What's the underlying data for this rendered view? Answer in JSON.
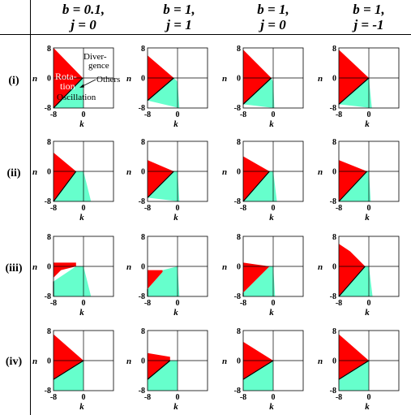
{
  "column_headers": [
    {
      "line1": "b = 0.1,",
      "line2": "j = 0"
    },
    {
      "line1": "b = 1,",
      "line2": "j = 1"
    },
    {
      "line1": "b = 1,",
      "line2": "j = 0"
    },
    {
      "line1": "b = 1,",
      "line2": "j = -1"
    }
  ],
  "row_headers": [
    "(i)",
    "(ii)",
    "(iii)",
    "(iv)"
  ],
  "axes": {
    "x_label": "k",
    "y_label": "n",
    "x_ticks": [
      "-8",
      "0"
    ],
    "y_ticks": [
      "8",
      "0",
      "-8"
    ]
  },
  "annotations": {
    "rotation_line1": "Rota-",
    "rotation_line2": "tion",
    "divergence_line1": "Diver-",
    "divergence_line2": "gence",
    "others": "Others",
    "oscillation": "Oscillation"
  },
  "colors": {
    "rotation": "#ff0000",
    "oscillation": "#66ffcc",
    "divergence": "#ffffff",
    "others": "#000000"
  },
  "panels": [
    [
      {
        "rot": [
          [
            -8,
            8
          ],
          [
            -8,
            -8
          ],
          [
            -0.2,
            0
          ]
        ],
        "osc": [
          [
            -8,
            -8
          ],
          [
            -0.2,
            0
          ],
          [
            0,
            -8
          ]
        ]
      },
      {
        "rot": [
          [
            -8,
            6
          ],
          [
            -8,
            -6
          ],
          [
            -1,
            0
          ]
        ],
        "osc": [
          [
            -8,
            -6
          ],
          [
            -1,
            0
          ],
          [
            0,
            -1
          ],
          [
            0.5,
            -8
          ]
        ]
      },
      {
        "rot": [
          [
            -8,
            7.5
          ],
          [
            -8,
            -7
          ],
          [
            -0.5,
            0
          ]
        ],
        "osc": [
          [
            -8,
            -7
          ],
          [
            -0.5,
            0
          ],
          [
            0,
            -1
          ],
          [
            0.3,
            -8
          ]
        ]
      },
      {
        "rot": [
          [
            -8,
            7.5
          ],
          [
            -8,
            -7
          ],
          [
            0,
            0
          ]
        ],
        "osc": [
          [
            -8,
            -7
          ],
          [
            0,
            0
          ],
          [
            0.8,
            -8
          ]
        ]
      }
    ],
    [
      {
        "rot": [
          [
            -8,
            5
          ],
          [
            -8,
            -8
          ],
          [
            -2,
            0
          ]
        ],
        "osc": [
          [
            -8,
            -8
          ],
          [
            -2,
            0
          ],
          [
            0,
            0
          ],
          [
            2,
            -8
          ]
        ]
      },
      {
        "rot": [
          [
            -8,
            3
          ],
          [
            -8,
            -7
          ],
          [
            -1,
            0
          ]
        ],
        "osc": [
          [
            -8,
            -7
          ],
          [
            -1,
            0
          ],
          [
            0,
            0
          ],
          [
            0.5,
            -8
          ]
        ]
      },
      {
        "rot": [
          [
            -8,
            4
          ],
          [
            -8,
            -8
          ],
          [
            -1,
            0
          ]
        ],
        "osc": [
          [
            -8,
            -8
          ],
          [
            -1,
            0
          ],
          [
            0,
            0
          ],
          [
            1,
            -8
          ]
        ]
      },
      {
        "rot": [
          [
            -8,
            3
          ],
          [
            -8,
            -8
          ],
          [
            -0.5,
            0
          ]
        ],
        "osc": [
          [
            -8,
            -8
          ],
          [
            -0.5,
            0
          ],
          [
            0,
            0
          ],
          [
            0.5,
            -8
          ]
        ]
      }
    ],
    [
      {
        "rot": [
          [
            -8,
            1
          ],
          [
            -2,
            1
          ],
          [
            -2,
            0
          ],
          [
            -6,
            -1
          ],
          [
            -8,
            -3
          ]
        ],
        "osc": [
          [
            -8,
            -8
          ],
          [
            -8,
            -4
          ],
          [
            -2,
            0
          ],
          [
            0,
            0
          ],
          [
            2,
            -8
          ]
        ]
      },
      {
        "rot": [
          [
            -8,
            -1
          ],
          [
            -4,
            -1
          ],
          [
            -4,
            -1.5
          ],
          [
            -8,
            -6
          ]
        ],
        "osc": [
          [
            -8,
            -8
          ],
          [
            -8,
            -6
          ],
          [
            -4,
            -1.5
          ],
          [
            -4,
            -1
          ],
          [
            0,
            0
          ],
          [
            0.5,
            -8
          ]
        ]
      },
      {
        "rot": [
          [
            -8,
            1
          ],
          [
            -1,
            0
          ],
          [
            -8,
            -7
          ]
        ],
        "osc": [
          [
            -8,
            -8
          ],
          [
            -8,
            -7
          ],
          [
            -1,
            0
          ],
          [
            0,
            0
          ],
          [
            0.5,
            -8
          ]
        ]
      },
      {
        "rot": [
          [
            -8,
            6
          ],
          [
            -5,
            4
          ],
          [
            -1,
            0
          ],
          [
            -8,
            -8
          ]
        ],
        "osc": [
          [
            -8,
            -8
          ],
          [
            -1,
            0
          ],
          [
            0,
            0
          ],
          [
            1,
            -8
          ]
        ]
      }
    ],
    [
      {
        "rot": [
          [
            -8,
            7
          ],
          [
            -8,
            -5
          ],
          [
            0,
            0
          ]
        ],
        "osc": [
          [
            -8,
            -5
          ],
          [
            0,
            0
          ],
          [
            0,
            -8
          ],
          [
            -8,
            -8
          ]
        ]
      },
      {
        "rot": [
          [
            -8,
            2
          ],
          [
            -2,
            1
          ],
          [
            -2,
            0
          ],
          [
            -8,
            -5
          ]
        ],
        "osc": [
          [
            -8,
            -5
          ],
          [
            -2,
            0
          ],
          [
            0,
            0
          ],
          [
            0,
            -8
          ],
          [
            -8,
            -8
          ]
        ]
      },
      {
        "rot": [
          [
            -8,
            5
          ],
          [
            -8,
            -5
          ],
          [
            0,
            0
          ]
        ],
        "osc": [
          [
            -8,
            -5
          ],
          [
            0,
            0
          ],
          [
            0,
            -8
          ],
          [
            -8,
            -8
          ]
        ]
      },
      {
        "rot": [
          [
            -8,
            7
          ],
          [
            -8,
            -5
          ],
          [
            0,
            0
          ]
        ],
        "osc": [
          [
            -8,
            -5
          ],
          [
            0,
            0
          ],
          [
            0,
            -8
          ],
          [
            -8,
            -8
          ]
        ]
      }
    ]
  ]
}
